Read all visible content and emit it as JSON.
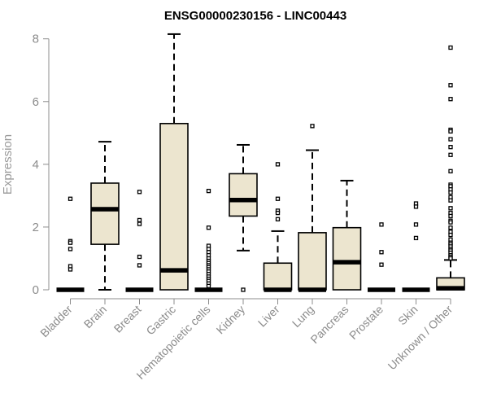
{
  "chart_data": {
    "type": "box",
    "title": "ENSG00000230156 - LINC00443",
    "xlabel": "",
    "ylabel": "Expression",
    "ylim": [
      0,
      8.2
    ],
    "yticks": [
      0,
      2,
      4,
      6,
      8
    ],
    "grid": false,
    "box_fill": "#ece5cf",
    "box_stroke": "#000000",
    "categories": [
      "Bladder",
      "Brain",
      "Breast",
      "Gastric",
      "Hematopoietic cells",
      "Kidney",
      "Liver",
      "Lung",
      "Pancreas",
      "Prostate",
      "Skin",
      "Unknown / Other"
    ],
    "boxes": [
      {
        "name": "Bladder",
        "min": 0,
        "q1": 0,
        "median": 0,
        "q3": 0,
        "max": 0,
        "outliers": [
          2.9,
          1.55,
          1.5,
          1.3,
          0.75,
          0.65
        ]
      },
      {
        "name": "Brain",
        "min": 0,
        "q1": 1.45,
        "median": 2.57,
        "q3": 3.4,
        "max": 4.72,
        "outliers": []
      },
      {
        "name": "Breast",
        "min": 0,
        "q1": 0,
        "median": 0,
        "q3": 0,
        "max": 0,
        "outliers": [
          3.12,
          2.22,
          2.1,
          1.05,
          0.78
        ]
      },
      {
        "name": "Gastric",
        "min": 0,
        "q1": 0,
        "median": 0.62,
        "q3": 5.3,
        "max": 8.15,
        "outliers": []
      },
      {
        "name": "Hematopoietic cells",
        "min": 0,
        "q1": 0,
        "median": 0,
        "q3": 0,
        "max": 0,
        "outliers": [
          3.15,
          1.98,
          1.4,
          1.3,
          1.2,
          1.1,
          1.0,
          0.92,
          0.85,
          0.78,
          0.72,
          0.65,
          0.58,
          0.5,
          0.42,
          0.35,
          0.28,
          0.2,
          0.12
        ]
      },
      {
        "name": "Kidney",
        "min": 1.25,
        "q1": 2.35,
        "median": 2.86,
        "q3": 3.7,
        "max": 4.62,
        "outliers": [
          0
        ]
      },
      {
        "name": "Liver",
        "min": 0,
        "q1": 0,
        "median": 0,
        "q3": 0.85,
        "max": 1.87,
        "outliers": [
          4.0,
          2.9,
          2.52,
          2.45,
          2.25
        ]
      },
      {
        "name": "Lung",
        "min": 0,
        "q1": 0,
        "median": 0,
        "q3": 1.82,
        "max": 4.45,
        "outliers": [
          5.22
        ]
      },
      {
        "name": "Pancreas",
        "min": 0,
        "q1": 0,
        "median": 0.88,
        "q3": 1.98,
        "max": 3.48,
        "outliers": []
      },
      {
        "name": "Prostate",
        "min": 0,
        "q1": 0,
        "median": 0,
        "q3": 0,
        "max": 0,
        "outliers": [
          2.08,
          1.2,
          0.8
        ]
      },
      {
        "name": "Skin",
        "min": 0,
        "q1": 0,
        "median": 0,
        "q3": 0,
        "max": 0,
        "outliers": [
          2.75,
          2.65,
          2.08,
          1.65
        ]
      },
      {
        "name": "Unknown / Other",
        "min": 0,
        "q1": 0,
        "median": 0.05,
        "q3": 0.38,
        "max": 0.95,
        "outliers": [
          7.72,
          6.52,
          6.08,
          5.1,
          5.05,
          4.8,
          4.55,
          4.3,
          3.78,
          3.35,
          3.3,
          3.2,
          3.1,
          2.95,
          2.85,
          2.6,
          2.45,
          2.35,
          2.2,
          2.15,
          1.98,
          1.85,
          1.75,
          1.6,
          1.5,
          1.45,
          1.38,
          1.3,
          1.25,
          1.18,
          1.1,
          1.05,
          1.0
        ]
      }
    ]
  }
}
